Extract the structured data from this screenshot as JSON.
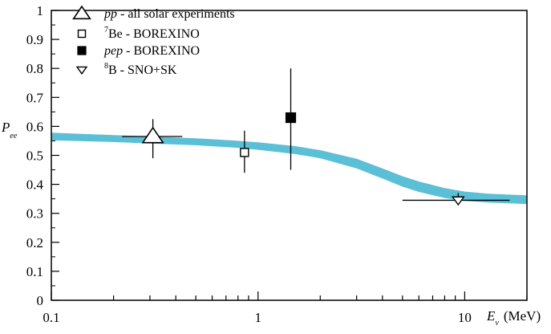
{
  "chart_data": {
    "type": "scatter",
    "x_scale": "log",
    "xlim": [
      0.1,
      20
    ],
    "ylim": [
      0,
      1
    ],
    "y_ticks": [
      "0",
      "0.1",
      "0.2",
      "0.3",
      "0.4",
      "0.5",
      "0.6",
      "0.7",
      "0.8",
      "0.9",
      "1"
    ],
    "x_tick_labels": [
      "0.1",
      "1",
      "10"
    ],
    "xlabel": {
      "main": "E",
      "sub": "ν",
      "unit": "(MeV)"
    },
    "ylabel": {
      "main": "P",
      "sub": "ee"
    },
    "band": {
      "color": "#5bbfd6",
      "x": [
        0.1,
        0.2,
        0.3,
        0.5,
        0.8,
        1.0,
        1.5,
        2.0,
        3.0,
        4.0,
        5.0,
        6.0,
        8.0,
        10.0,
        13.0,
        20.0
      ],
      "upper": [
        0.578,
        0.57,
        0.565,
        0.559,
        0.55,
        0.545,
        0.532,
        0.518,
        0.488,
        0.455,
        0.428,
        0.41,
        0.387,
        0.375,
        0.368,
        0.362
      ],
      "lower": [
        0.552,
        0.546,
        0.541,
        0.535,
        0.526,
        0.519,
        0.505,
        0.49,
        0.455,
        0.42,
        0.392,
        0.374,
        0.353,
        0.343,
        0.337,
        0.332
      ]
    },
    "series": [
      {
        "name": "pp",
        "name_rest": " - all solar experiments",
        "marker": "triangle-up-open",
        "x": 0.31,
        "y": 0.565,
        "xerr": [
          0.22,
          0.43
        ],
        "yerr": [
          0.49,
          0.625
        ]
      },
      {
        "name": "Be",
        "sup": "7",
        "name_rest": " - BOREXINO",
        "marker": "square-open",
        "x": 0.86,
        "y": 0.51,
        "xerr": null,
        "yerr": [
          0.44,
          0.585
        ]
      },
      {
        "name": "pep",
        "name_rest": " - BOREXINO",
        "marker": "square-filled",
        "x": 1.44,
        "y": 0.63,
        "xerr": null,
        "yerr": [
          0.45,
          0.8
        ]
      },
      {
        "name": "B - SNO+SK",
        "sup": "8",
        "name_rest": "",
        "marker": "triangle-down-open",
        "x": 9.3,
        "y": 0.345,
        "xerr": [
          5.0,
          16.5
        ],
        "yerr": [
          0.33,
          0.37
        ]
      }
    ],
    "legend": {
      "placement": "top-left"
    }
  }
}
